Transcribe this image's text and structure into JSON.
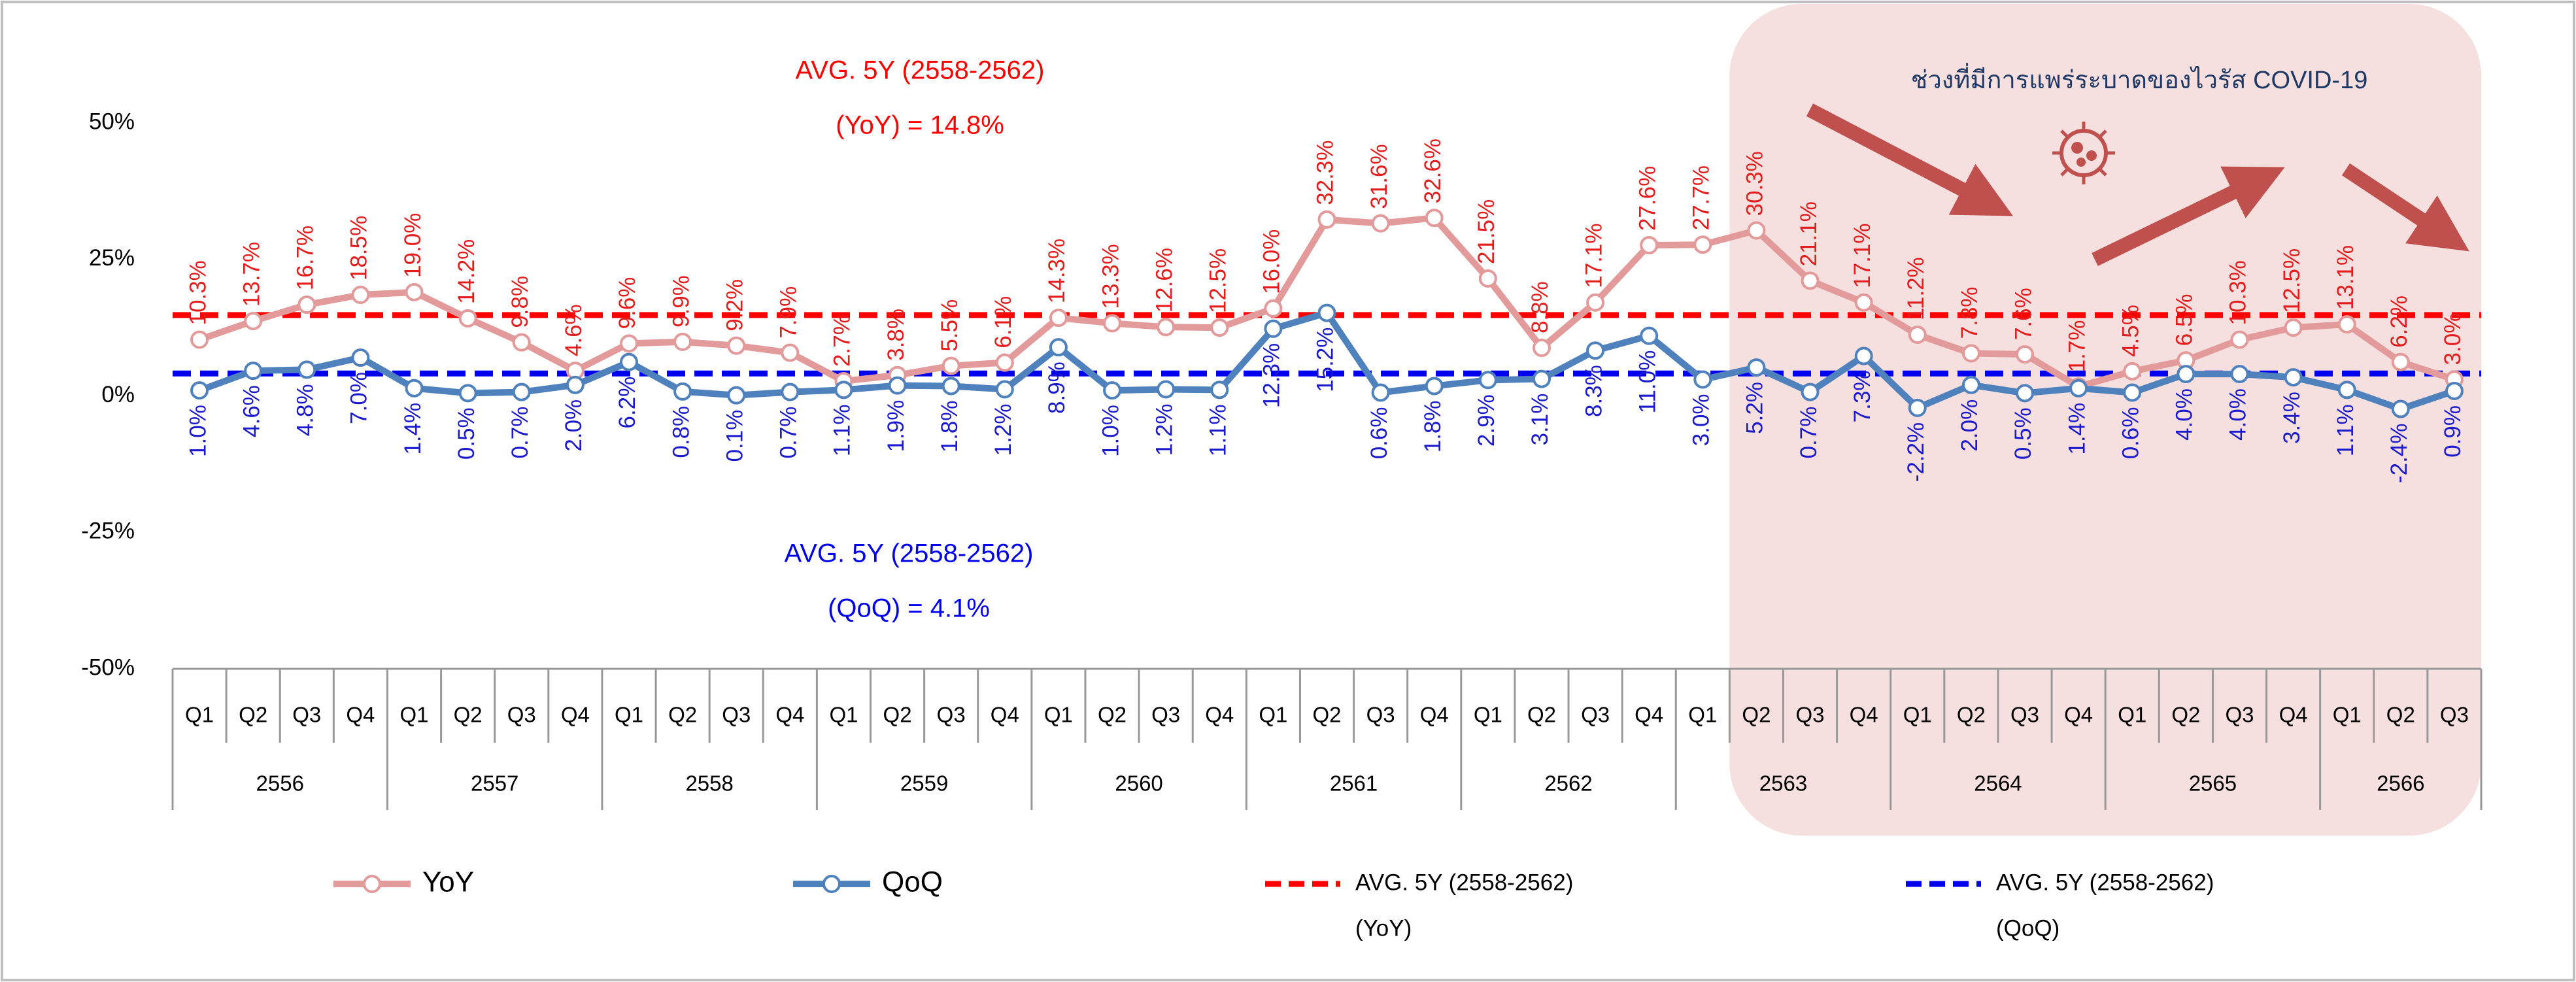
{
  "chart_data": {
    "type": "line",
    "categories": [
      "Q1",
      "Q2",
      "Q3",
      "Q4",
      "Q1",
      "Q2",
      "Q3",
      "Q4",
      "Q1",
      "Q2",
      "Q3",
      "Q4",
      "Q1",
      "Q2",
      "Q3",
      "Q4",
      "Q1",
      "Q2",
      "Q3",
      "Q4",
      "Q1",
      "Q2",
      "Q3",
      "Q4",
      "Q1",
      "Q2",
      "Q3",
      "Q4",
      "Q1",
      "Q2",
      "Q3",
      "Q4",
      "Q1",
      "Q2",
      "Q3",
      "Q4",
      "Q1",
      "Q2",
      "Q3",
      "Q4",
      "Q1",
      "Q2",
      "Q3"
    ],
    "years": [
      "2556",
      "2557",
      "2558",
      "2559",
      "2560",
      "2561",
      "2562",
      "2563",
      "2564",
      "2565",
      "2566"
    ],
    "series": [
      {
        "name": "YoY",
        "color": "#e29a9a",
        "label_color": "#e41c1c",
        "values": [
          10.3,
          13.7,
          16.7,
          18.5,
          19.0,
          14.2,
          9.8,
          4.6,
          9.6,
          9.9,
          9.2,
          7.9,
          2.7,
          3.8,
          5.5,
          6.1,
          14.3,
          13.3,
          12.6,
          12.5,
          16.0,
          32.3,
          31.6,
          32.6,
          21.5,
          8.8,
          17.1,
          27.6,
          27.7,
          30.3,
          21.1,
          17.1,
          11.2,
          7.8,
          7.6,
          1.7,
          4.5,
          6.5,
          10.3,
          12.5,
          13.1,
          6.2,
          3.0
        ],
        "value_labels": [
          "10.3%",
          "13.7%",
          "16.7%",
          "18.5%",
          "19.0%",
          "14.2%",
          "9.8%",
          "4.6%",
          "9.6%",
          "9.9%",
          "9.2%",
          "7.9%",
          "2.7%",
          "3.8%",
          "5.5%",
          "6.1%",
          "14.3%",
          "13.3%",
          "12.6%",
          "12.5%",
          "16.0%",
          "32.3%",
          "31.6%",
          "32.6%",
          "21.5%",
          "8.8%",
          "17.1%",
          "27.6%",
          "27.7%",
          "30.3%",
          "21.1%",
          "17.1%",
          "11.2%",
          "7.8%",
          "7.6%",
          "1.7%",
          "4.5%",
          "6.5%",
          "10.3%",
          "12.5%",
          "13.1%",
          "6.2%",
          "3.0%"
        ]
      },
      {
        "name": "QoQ",
        "color": "#4f81bd",
        "label_color": "#1a1acc",
        "values": [
          1.0,
          4.6,
          4.8,
          7.0,
          1.4,
          0.5,
          0.7,
          2.0,
          6.2,
          0.8,
          0.1,
          0.7,
          1.1,
          1.9,
          1.8,
          1.2,
          8.9,
          1.0,
          1.2,
          1.1,
          12.3,
          15.2,
          0.6,
          1.8,
          2.9,
          3.1,
          8.3,
          11.0,
          3.0,
          5.2,
          0.7,
          7.3,
          -2.2,
          2.0,
          0.5,
          1.4,
          0.6,
          4.0,
          4.0,
          3.4,
          1.1,
          -2.4,
          0.9
        ],
        "value_labels": [
          "1.0%",
          "4.6%",
          "4.8%",
          "7.0%",
          "1.4%",
          "0.5%",
          "0.7%",
          "2.0%",
          "6.2%",
          "0.8%",
          "0.1%",
          "0.7%",
          "1.1%",
          "1.9%",
          "1.8%",
          "1.2%",
          "8.9%",
          "1.0%",
          "1.2%",
          "1.1%",
          "12.3%",
          "15.2%",
          "0.6%",
          "1.8%",
          "2.9%",
          "3.1%",
          "8.3%",
          "11.0%",
          "3.0%",
          "5.2%",
          "0.7%",
          "7.3%",
          "-2.2%",
          "2.0%",
          "0.5%",
          "1.4%",
          "0.6%",
          "4.0%",
          "4.0%",
          "3.4%",
          "1.1%",
          "-2.4%",
          "0.9%"
        ]
      }
    ],
    "reference_lines": [
      {
        "name": "AVG. 5Y (2558-2562)",
        "name_line2": "(YoY)",
        "value": 14.8,
        "color": "#ff0000",
        "annotation": [
          "AVG. 5Y (2558-2562)",
          "(YoY) = 14.8%"
        ]
      },
      {
        "name": "AVG. 5Y (2558-2562)",
        "name_line2": "(QoQ)",
        "value": 4.1,
        "color": "#0000ee",
        "annotation": [
          "AVG. 5Y (2558-2562)",
          "(QoQ) = 4.1%"
        ]
      }
    ],
    "highlight": {
      "text": "ช่วงที่มีการแพร่ระบาดของไวรัส COVID-19",
      "start_index": 29,
      "color": "#f5dfdf"
    },
    "ylim": [
      -50,
      50
    ],
    "yticks": [
      {
        "value": -50,
        "label": "-50%"
      },
      {
        "value": -25,
        "label": "-25%"
      },
      {
        "value": 0,
        "label": "0%"
      },
      {
        "value": 25,
        "label": "25%"
      },
      {
        "value": 50,
        "label": "50%"
      }
    ],
    "grid": false
  }
}
